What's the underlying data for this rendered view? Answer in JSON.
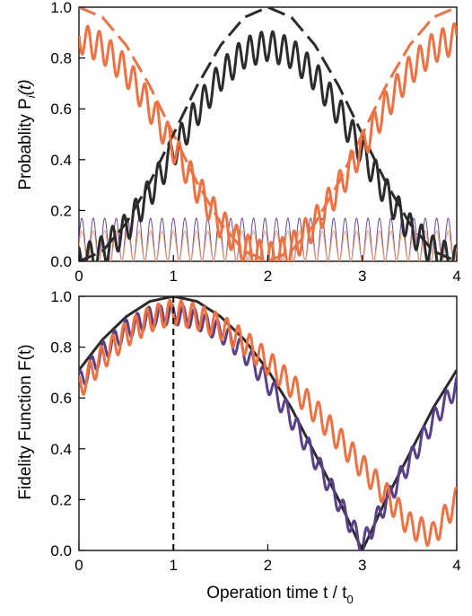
{
  "chart_data": [
    {
      "type": "line",
      "panel": "top",
      "ylabel": "Probablity P",
      "ylabel_math": {
        "sub": "i",
        "arg": "(t)"
      },
      "xlim": [
        0,
        4
      ],
      "ylim": [
        0,
        1.0
      ],
      "x_ticks": [
        "0",
        "1",
        "2",
        "3",
        "4"
      ],
      "y_ticks": [
        "0.0",
        "0.2",
        "0.4",
        "0.6",
        "0.8",
        "1.0"
      ],
      "grid": false,
      "series": [
        {
          "style": "dashed",
          "color": "#f07040",
          "x": [
            0,
            0.25,
            0.5,
            0.75,
            1,
            1.25,
            1.5,
            1.75,
            2,
            2.25,
            2.5,
            2.75,
            3,
            3.25,
            3.5,
            3.75,
            4
          ],
          "y": [
            1.0,
            0.96,
            0.85,
            0.69,
            0.5,
            0.31,
            0.15,
            0.04,
            0.0,
            0.04,
            0.15,
            0.31,
            0.5,
            0.69,
            0.85,
            0.96,
            1.0
          ]
        },
        {
          "style": "dashed",
          "color": "#2b2b2b",
          "x": [
            0,
            0.25,
            0.5,
            0.75,
            1,
            1.25,
            1.5,
            1.75,
            2,
            2.25,
            2.5,
            2.75,
            3,
            3.25,
            3.5,
            3.75,
            4
          ],
          "y": [
            0.0,
            0.04,
            0.15,
            0.31,
            0.5,
            0.69,
            0.85,
            0.96,
            1.0,
            0.96,
            0.85,
            0.69,
            0.5,
            0.31,
            0.15,
            0.04,
            0.0
          ]
        },
        {
          "style": "solid",
          "color": "#2b2b2b",
          "oscillating": true,
          "x": [
            0,
            0.25,
            0.5,
            0.75,
            1,
            1.25,
            1.5,
            1.75,
            2,
            2.25,
            2.5,
            2.75,
            3,
            3.25,
            3.5,
            3.75,
            4
          ],
          "y": [
            0.0,
            0.04,
            0.13,
            0.27,
            0.43,
            0.59,
            0.73,
            0.82,
            0.85,
            0.82,
            0.73,
            0.59,
            0.43,
            0.27,
            0.13,
            0.04,
            0.0
          ],
          "ripple_amplitude": 0.06
        },
        {
          "style": "solid",
          "color": "#f07040",
          "oscillating": true,
          "x": [
            0,
            0.25,
            0.5,
            0.75,
            1,
            1.25,
            1.5,
            1.75,
            2,
            2.25,
            2.5,
            2.75,
            3,
            3.25,
            3.5,
            3.75,
            4
          ],
          "y": [
            0.88,
            0.84,
            0.75,
            0.61,
            0.45,
            0.29,
            0.15,
            0.05,
            0.01,
            0.05,
            0.15,
            0.29,
            0.45,
            0.61,
            0.75,
            0.84,
            0.88
          ],
          "ripple_amplitude": 0.06
        },
        {
          "style": "thin",
          "color": "#6a4a9a",
          "oscillating": true,
          "y_range": [
            0.0,
            0.17
          ],
          "cycles": 33
        },
        {
          "style": "thin",
          "color": "#f0a070",
          "oscillating": true,
          "y_range": [
            0.0,
            0.12
          ],
          "cycles": 33
        }
      ]
    },
    {
      "type": "line",
      "panel": "bottom",
      "ylabel": "Fidelity Function F(t)",
      "xlabel": "Operation time t / t",
      "xlabel_sub": "0",
      "xlim": [
        0,
        4
      ],
      "ylim": [
        0,
        1.0
      ],
      "x_ticks": [
        "0",
        "1",
        "2",
        "3",
        "4"
      ],
      "y_ticks": [
        "0.0",
        "0.2",
        "0.4",
        "0.6",
        "0.8",
        "1.0"
      ],
      "grid": false,
      "vline": {
        "x": 1,
        "style": "dashed"
      },
      "series": [
        {
          "style": "solid",
          "color": "#2b2b2b",
          "x": [
            0,
            0.25,
            0.5,
            0.75,
            1,
            1.25,
            1.5,
            1.75,
            2,
            2.25,
            2.5,
            2.75,
            3,
            3.25,
            3.5,
            3.75,
            4
          ],
          "y": [
            0.71,
            0.83,
            0.92,
            0.98,
            1.0,
            0.98,
            0.92,
            0.83,
            0.71,
            0.56,
            0.38,
            0.2,
            0.0,
            0.2,
            0.38,
            0.56,
            0.71
          ]
        },
        {
          "style": "solid",
          "color": "#5a3f8a",
          "oscillating": true,
          "x": [
            0,
            0.25,
            0.5,
            0.75,
            1,
            1.25,
            1.5,
            1.75,
            2,
            2.25,
            2.5,
            2.75,
            3,
            3.25,
            3.5,
            3.75,
            4
          ],
          "y": [
            0.66,
            0.78,
            0.87,
            0.92,
            0.93,
            0.91,
            0.86,
            0.78,
            0.66,
            0.52,
            0.36,
            0.19,
            0.02,
            0.19,
            0.35,
            0.51,
            0.65
          ],
          "ripple_amplitude": 0.04
        },
        {
          "style": "solid",
          "color": "#f07040",
          "oscillating": true,
          "x": [
            0,
            0.25,
            0.5,
            0.75,
            1,
            1.25,
            1.5,
            1.75,
            2,
            2.25,
            2.5,
            2.75,
            3,
            3.25,
            3.5,
            3.75,
            4
          ],
          "y": [
            0.64,
            0.76,
            0.85,
            0.91,
            0.94,
            0.92,
            0.88,
            0.82,
            0.74,
            0.65,
            0.55,
            0.44,
            0.33,
            0.22,
            0.1,
            0.06,
            0.2
          ],
          "ripple_amplitude": 0.05
        }
      ]
    }
  ]
}
